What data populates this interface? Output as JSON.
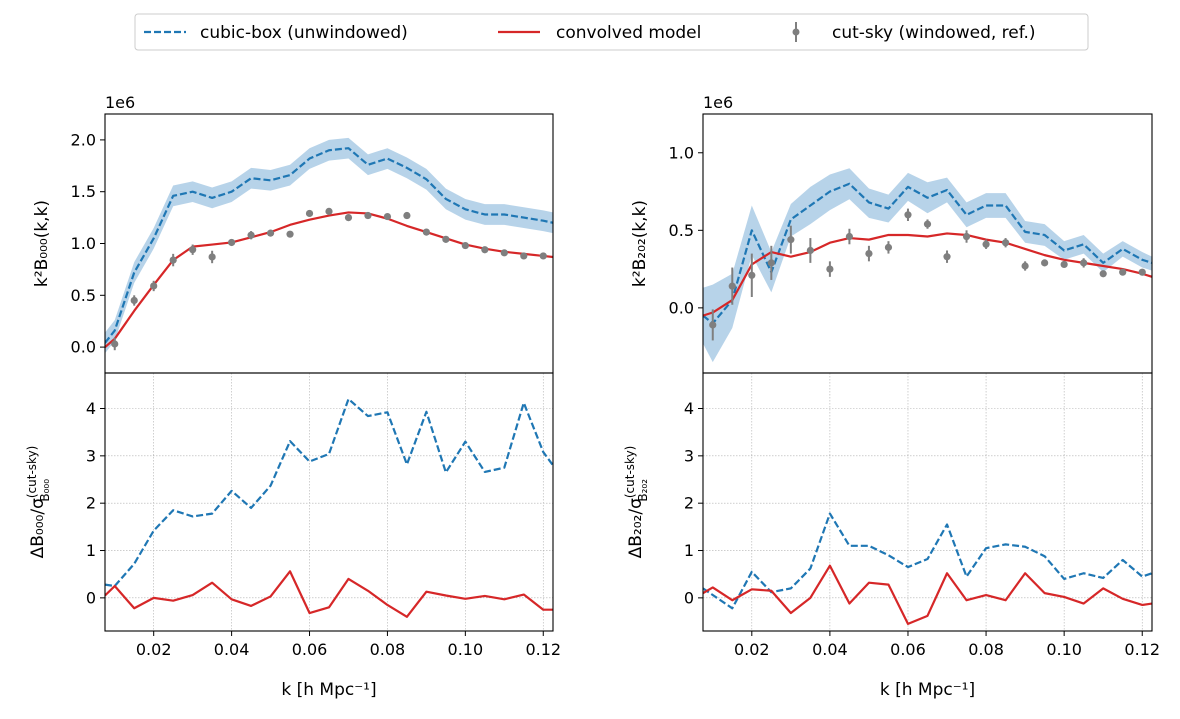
{
  "legend": [
    {
      "label": "cubic-box (unwindowed)",
      "color": "#1f77b4",
      "style": "dashed"
    },
    {
      "label": "convolved model",
      "color": "#d62728",
      "style": "solid"
    },
    {
      "label": "cut-sky (windowed, ref.)",
      "color": "#7f7f7f",
      "style": "errorbar"
    }
  ],
  "chart_data": [
    {
      "type": "line",
      "panel": "top-left",
      "ylabel": "k²B₀₀₀(k,k)",
      "offset_label": "1e6",
      "xlim": [
        0.0075,
        0.1225
      ],
      "ylim": [
        -0.25,
        2.25
      ],
      "yticks": [
        0.0,
        0.5,
        1.0,
        1.5,
        2.0
      ],
      "x": [
        0.0075,
        0.01,
        0.015,
        0.02,
        0.025,
        0.03,
        0.035,
        0.04,
        0.045,
        0.05,
        0.055,
        0.06,
        0.065,
        0.07,
        0.075,
        0.08,
        0.085,
        0.09,
        0.095,
        0.1,
        0.105,
        0.11,
        0.115,
        0.12,
        0.1225
      ],
      "series": [
        {
          "name": "cubic-box (unwindowed)",
          "band": 0.1,
          "values": [
            0.04,
            0.16,
            0.72,
            1.05,
            1.46,
            1.5,
            1.44,
            1.5,
            1.63,
            1.61,
            1.66,
            1.82,
            1.9,
            1.92,
            1.76,
            1.82,
            1.73,
            1.62,
            1.43,
            1.33,
            1.28,
            1.28,
            1.25,
            1.22,
            1.2
          ]
        },
        {
          "name": "convolved model",
          "values": [
            0.0,
            0.08,
            0.35,
            0.6,
            0.84,
            0.97,
            0.99,
            1.01,
            1.06,
            1.11,
            1.18,
            1.23,
            1.27,
            1.3,
            1.29,
            1.24,
            1.17,
            1.11,
            1.05,
            0.99,
            0.95,
            0.92,
            0.9,
            0.88,
            0.87
          ]
        },
        {
          "name": "cut-sky (windowed, ref.)",
          "x": [
            0.01,
            0.015,
            0.02,
            0.025,
            0.03,
            0.035,
            0.04,
            0.045,
            0.05,
            0.055,
            0.06,
            0.065,
            0.07,
            0.075,
            0.08,
            0.085,
            0.09,
            0.095,
            0.1,
            0.105,
            0.11,
            0.115,
            0.12
          ],
          "values": [
            0.03,
            0.45,
            0.59,
            0.84,
            0.94,
            0.87,
            1.01,
            1.08,
            1.1,
            1.09,
            1.29,
            1.31,
            1.25,
            1.27,
            1.26,
            1.27,
            1.11,
            1.04,
            0.98,
            0.94,
            0.91,
            0.88,
            0.88
          ],
          "errors": [
            0.06,
            0.05,
            0.05,
            0.06,
            0.05,
            0.06,
            0.03,
            0.04,
            0.03,
            0.03,
            0.03,
            0.03,
            0.02,
            0.02,
            0.02,
            0.02,
            0.02,
            0.02,
            0.02,
            0.02,
            0.02,
            0.02,
            0.02
          ]
        }
      ]
    },
    {
      "type": "line",
      "panel": "top-right",
      "ylabel": "k²B₂₀₂(k,k)",
      "offset_label": "1e6",
      "xlim": [
        0.0075,
        0.1225
      ],
      "ylim": [
        -0.42,
        1.25
      ],
      "yticks": [
        0.0,
        0.5,
        1.0
      ],
      "x": [
        0.0075,
        0.01,
        0.015,
        0.02,
        0.025,
        0.03,
        0.035,
        0.04,
        0.045,
        0.05,
        0.055,
        0.06,
        0.065,
        0.07,
        0.075,
        0.08,
        0.085,
        0.09,
        0.095,
        0.1,
        0.105,
        0.11,
        0.115,
        0.12,
        0.1225
      ],
      "series": [
        {
          "name": "cubic-box (unwindowed)",
          "band_lower": [
            -0.23,
            -0.35,
            -0.13,
            0.34,
            0.1,
            0.46,
            0.54,
            0.63,
            0.7,
            0.58,
            0.55,
            0.69,
            0.61,
            0.68,
            0.52,
            0.58,
            0.58,
            0.42,
            0.4,
            0.31,
            0.35,
            0.23,
            0.33,
            0.26,
            0.24
          ],
          "band_upper": [
            0.13,
            0.15,
            0.22,
            0.66,
            0.36,
            0.67,
            0.78,
            0.86,
            0.9,
            0.77,
            0.73,
            0.87,
            0.81,
            0.84,
            0.68,
            0.74,
            0.74,
            0.56,
            0.54,
            0.43,
            0.47,
            0.35,
            0.43,
            0.36,
            0.33
          ],
          "values": [
            -0.05,
            -0.1,
            0.05,
            0.5,
            0.23,
            0.57,
            0.66,
            0.75,
            0.8,
            0.68,
            0.64,
            0.78,
            0.71,
            0.76,
            0.6,
            0.66,
            0.66,
            0.49,
            0.47,
            0.37,
            0.41,
            0.29,
            0.38,
            0.31,
            0.29
          ]
        },
        {
          "name": "convolved model",
          "values": [
            -0.05,
            -0.03,
            0.05,
            0.28,
            0.36,
            0.33,
            0.36,
            0.42,
            0.45,
            0.44,
            0.47,
            0.47,
            0.46,
            0.48,
            0.47,
            0.44,
            0.42,
            0.38,
            0.34,
            0.31,
            0.29,
            0.27,
            0.25,
            0.22,
            0.2
          ]
        },
        {
          "name": "cut-sky (windowed, ref.)",
          "x": [
            0.01,
            0.015,
            0.02,
            0.025,
            0.03,
            0.035,
            0.04,
            0.045,
            0.05,
            0.055,
            0.06,
            0.065,
            0.07,
            0.075,
            0.08,
            0.085,
            0.09,
            0.095,
            0.1,
            0.105,
            0.11,
            0.115,
            0.12
          ],
          "values": [
            -0.11,
            0.14,
            0.21,
            0.29,
            0.44,
            0.37,
            0.25,
            0.46,
            0.35,
            0.39,
            0.6,
            0.54,
            0.33,
            0.46,
            0.41,
            0.42,
            0.27,
            0.29,
            0.28,
            0.29,
            0.22,
            0.23,
            0.23
          ],
          "errors": [
            0.1,
            0.12,
            0.14,
            0.11,
            0.09,
            0.08,
            0.05,
            0.05,
            0.05,
            0.04,
            0.04,
            0.03,
            0.04,
            0.04,
            0.03,
            0.03,
            0.03,
            0.02,
            0.02,
            0.03,
            0.02,
            0.02,
            0.02
          ]
        }
      ]
    },
    {
      "type": "line",
      "panel": "bottom-left",
      "xlabel": "k [h Mpc⁻¹]",
      "ylabel": "ΔB₀₀₀/σ",
      "ylabel_sup": "(cut-sky)",
      "ylabel_sub": "B₀₀₀",
      "xlim": [
        0.0075,
        0.1225
      ],
      "ylim": [
        -0.7,
        4.75
      ],
      "xticks": [
        0.02,
        0.04,
        0.06,
        0.08,
        0.1,
        0.12
      ],
      "xticklabels": [
        "0.02",
        "0.04",
        "0.06",
        "0.08",
        "0.10",
        "0.12"
      ],
      "yticks": [
        0,
        1,
        2,
        3,
        4
      ],
      "grid": true,
      "x": [
        0.0075,
        0.01,
        0.015,
        0.02,
        0.025,
        0.03,
        0.035,
        0.04,
        0.045,
        0.05,
        0.055,
        0.06,
        0.065,
        0.07,
        0.075,
        0.08,
        0.085,
        0.09,
        0.095,
        0.1,
        0.105,
        0.11,
        0.115,
        0.12,
        0.1225
      ],
      "series": [
        {
          "name": "cubic-box (unwindowed)",
          "values": [
            0.28,
            0.25,
            0.72,
            1.42,
            1.85,
            1.72,
            1.78,
            2.26,
            1.9,
            2.37,
            3.31,
            2.88,
            3.04,
            4.2,
            3.84,
            3.92,
            2.82,
            3.93,
            2.65,
            3.3,
            2.66,
            2.75,
            4.12,
            3.08,
            2.8
          ]
        },
        {
          "name": "convolved model",
          "values": [
            0.05,
            0.25,
            -0.22,
            0.0,
            -0.06,
            0.06,
            0.32,
            -0.03,
            -0.17,
            0.03,
            0.56,
            -0.32,
            -0.2,
            0.4,
            0.15,
            -0.15,
            -0.4,
            0.13,
            0.05,
            -0.02,
            0.04,
            -0.03,
            0.07,
            -0.25,
            -0.25
          ]
        }
      ]
    },
    {
      "type": "line",
      "panel": "bottom-right",
      "xlabel": "k [h Mpc⁻¹]",
      "ylabel": "ΔB₂₀₂/σ",
      "ylabel_sup": "(cut-sky)",
      "ylabel_sub": "B₂₀₂",
      "xlim": [
        0.0075,
        0.1225
      ],
      "ylim": [
        -0.7,
        4.75
      ],
      "xticks": [
        0.02,
        0.04,
        0.06,
        0.08,
        0.1,
        0.12
      ],
      "xticklabels": [
        "0.02",
        "0.04",
        "0.06",
        "0.08",
        "0.10",
        "0.12"
      ],
      "yticks": [
        0,
        1,
        2,
        3,
        4
      ],
      "grid": true,
      "x": [
        0.0075,
        0.01,
        0.015,
        0.02,
        0.025,
        0.03,
        0.035,
        0.04,
        0.045,
        0.05,
        0.055,
        0.06,
        0.065,
        0.07,
        0.075,
        0.08,
        0.085,
        0.09,
        0.095,
        0.1,
        0.105,
        0.11,
        0.115,
        0.12,
        0.1225
      ],
      "series": [
        {
          "name": "cubic-box (unwindowed)",
          "values": [
            0.2,
            0.06,
            -0.22,
            0.55,
            0.12,
            0.2,
            0.62,
            1.78,
            1.1,
            1.1,
            0.9,
            0.65,
            0.82,
            1.55,
            0.45,
            1.05,
            1.13,
            1.08,
            0.88,
            0.4,
            0.52,
            0.42,
            0.8,
            0.45,
            0.52
          ]
        },
        {
          "name": "convolved model",
          "values": [
            0.1,
            0.22,
            -0.05,
            0.18,
            0.15,
            -0.32,
            0.0,
            0.68,
            -0.12,
            0.32,
            0.28,
            -0.55,
            -0.38,
            0.52,
            -0.05,
            0.06,
            -0.05,
            0.52,
            0.1,
            0.02,
            -0.12,
            0.2,
            -0.02,
            -0.15,
            -0.12
          ]
        }
      ]
    }
  ]
}
